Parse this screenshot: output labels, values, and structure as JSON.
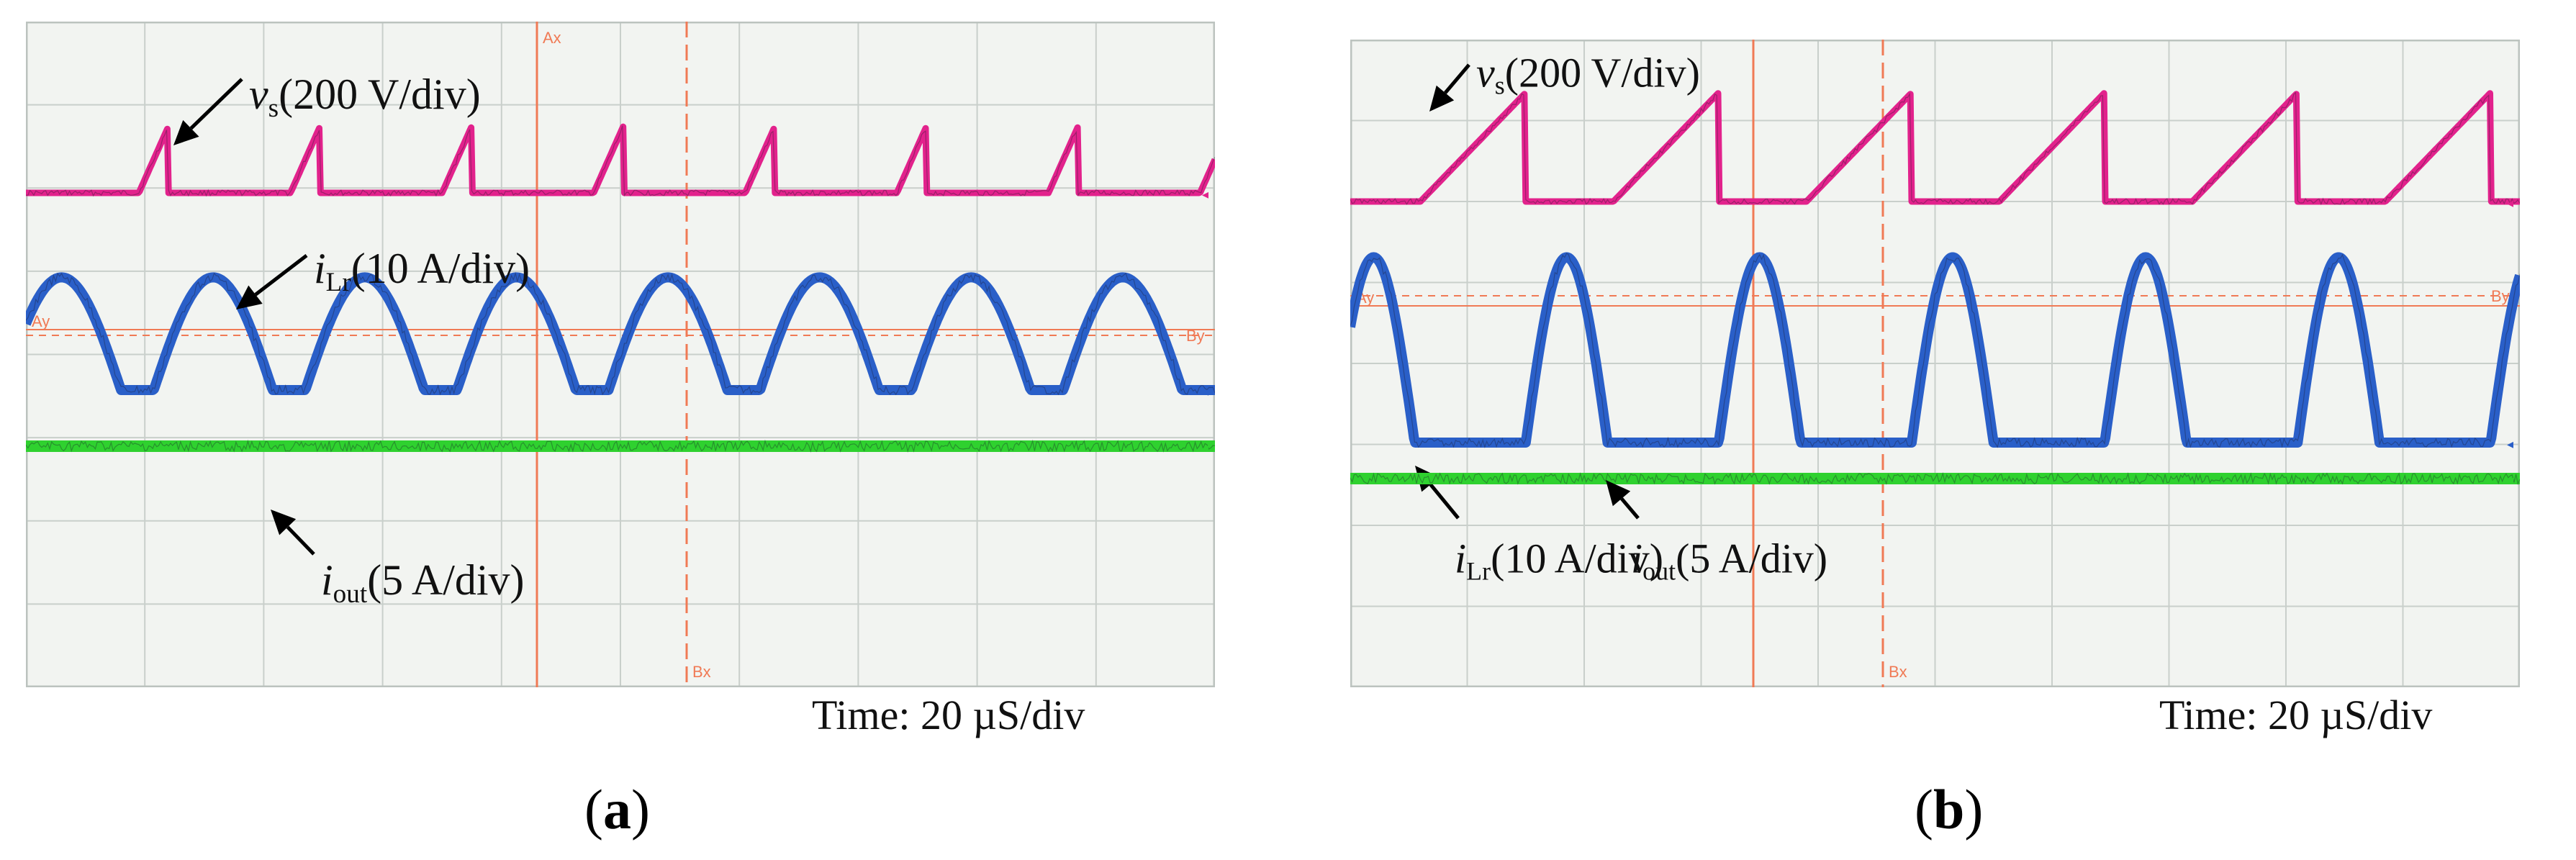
{
  "panels": [
    {
      "id": "a",
      "label": "a",
      "time_label": "Time: 20 µS/div",
      "cursor_labels": {
        "ax": "Ax",
        "bx": "Bx",
        "by": "By",
        "ay": "Ay"
      },
      "chart_data": {
        "type": "line",
        "x_unit": "µs",
        "x_range": [
          0,
          200
        ],
        "time_per_div": 20,
        "grid": true,
        "series": [
          {
            "name": "vs",
            "symbol": "v",
            "subscript": "s",
            "scale": "(200 V/div)",
            "color": "#e2228c",
            "waveform": "pulse",
            "period_us": 25.5,
            "first_rise_us": 19,
            "ramp_width_us": 5,
            "low_level_div": 0,
            "high_level_div": 0.8
          },
          {
            "name": "iLr",
            "symbol": "i",
            "subscript": "Lr",
            "scale": "(10 A/div)",
            "color": "#2a5fc8",
            "waveform": "sine-hump",
            "period_us": 25.5,
            "first_peak_us": 6,
            "hump_width_us": 20,
            "peak_div": 1.35
          },
          {
            "name": "iout",
            "symbol": "i",
            "subscript": "out",
            "scale": "(5 A/div)",
            "color": "#2fd12f",
            "waveform": "dc"
          }
        ]
      }
    },
    {
      "id": "b",
      "label": "b",
      "time_label": "Time: 20 µS/div",
      "cursor_labels": {
        "ax": "",
        "bx": "Bx",
        "by": "By",
        "ay": "Ay"
      },
      "chart_data": {
        "type": "line",
        "x_unit": "µs",
        "x_range": [
          0,
          200
        ],
        "time_per_div": 20,
        "grid": true,
        "series": [
          {
            "name": "vs",
            "symbol": "v",
            "subscript": "s",
            "scale": "(200 V/div)",
            "color": "#e2228c",
            "waveform": "sawtooth",
            "period_us": 33,
            "first_rise_us": 12,
            "ramp_width_us": 18,
            "low_level_div": 0,
            "high_level_div": 1.35
          },
          {
            "name": "iLr",
            "symbol": "i",
            "subscript": "Lr",
            "scale": "(10 A/div)",
            "color": "#2a5fc8",
            "waveform": "sine-hump",
            "period_us": 33,
            "first_peak_us": 4,
            "hump_width_us": 14,
            "peak_div": 2.3
          },
          {
            "name": "iout",
            "symbol": "i",
            "subscript": "out",
            "scale": "(5 A/div)",
            "color": "#2fd12f",
            "waveform": "dc"
          }
        ]
      }
    }
  ]
}
